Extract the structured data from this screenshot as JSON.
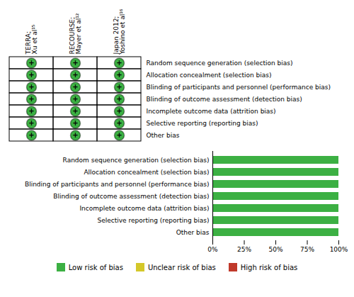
{
  "chart_data": [
    {
      "type": "table",
      "x": [
        "TERRA;\nXu et al¹⁵",
        "RECOURSE;\nMayer et al¹²",
        "Japan 2012;\nYoshino et al¹⁶"
      ],
      "categories": [
        "Random sequence generation (selection bias)",
        "Allocation concealment (selection bias)",
        "Blinding of participants and personnel (performance bias)",
        "Blinding of outcome assessment (detection bias)",
        "Incomplete outcome data (attrition bias)",
        "Selective reporting (reporting bias)",
        "Other bias"
      ],
      "cells": [
        [
          "+",
          "+",
          "+"
        ],
        [
          "+",
          "+",
          "+"
        ],
        [
          "+",
          "+",
          "+"
        ],
        [
          "+",
          "+",
          "+"
        ],
        [
          "+",
          "+",
          "+"
        ],
        [
          "+",
          "+",
          "+"
        ],
        [
          "+",
          "+",
          "+"
        ]
      ],
      "color": "#3cb043"
    },
    {
      "type": "bar",
      "orientation": "horizontal",
      "categories": [
        "Random sequence generation (selection bias)",
        "Allocation concealment (selection bias)",
        "Blinding of participants and personnel (performance bias)",
        "Blinding of outcome assessment (detection bias)",
        "Incomplete outcome data (attrition bias)",
        "Selective reporting (reporting bias)",
        "Other bias"
      ],
      "series": [
        {
          "name": "Low risk of bias",
          "color": "#3cb043",
          "values": [
            100,
            100,
            100,
            100,
            100,
            100,
            100
          ]
        },
        {
          "name": "Unclear risk of bias",
          "color": "#d4c82a"
        },
        {
          "name": "High risk of bias",
          "color": "#c0392b"
        }
      ],
      "xlim": [
        0,
        100
      ],
      "xticks": [
        {
          "value": 0,
          "label": "0%"
        },
        {
          "value": 25,
          "label": "25%"
        },
        {
          "value": 50,
          "label": "50%"
        },
        {
          "value": 75,
          "label": "75%"
        },
        {
          "value": 100,
          "label": "100%"
        }
      ],
      "legend": "bottom"
    }
  ]
}
